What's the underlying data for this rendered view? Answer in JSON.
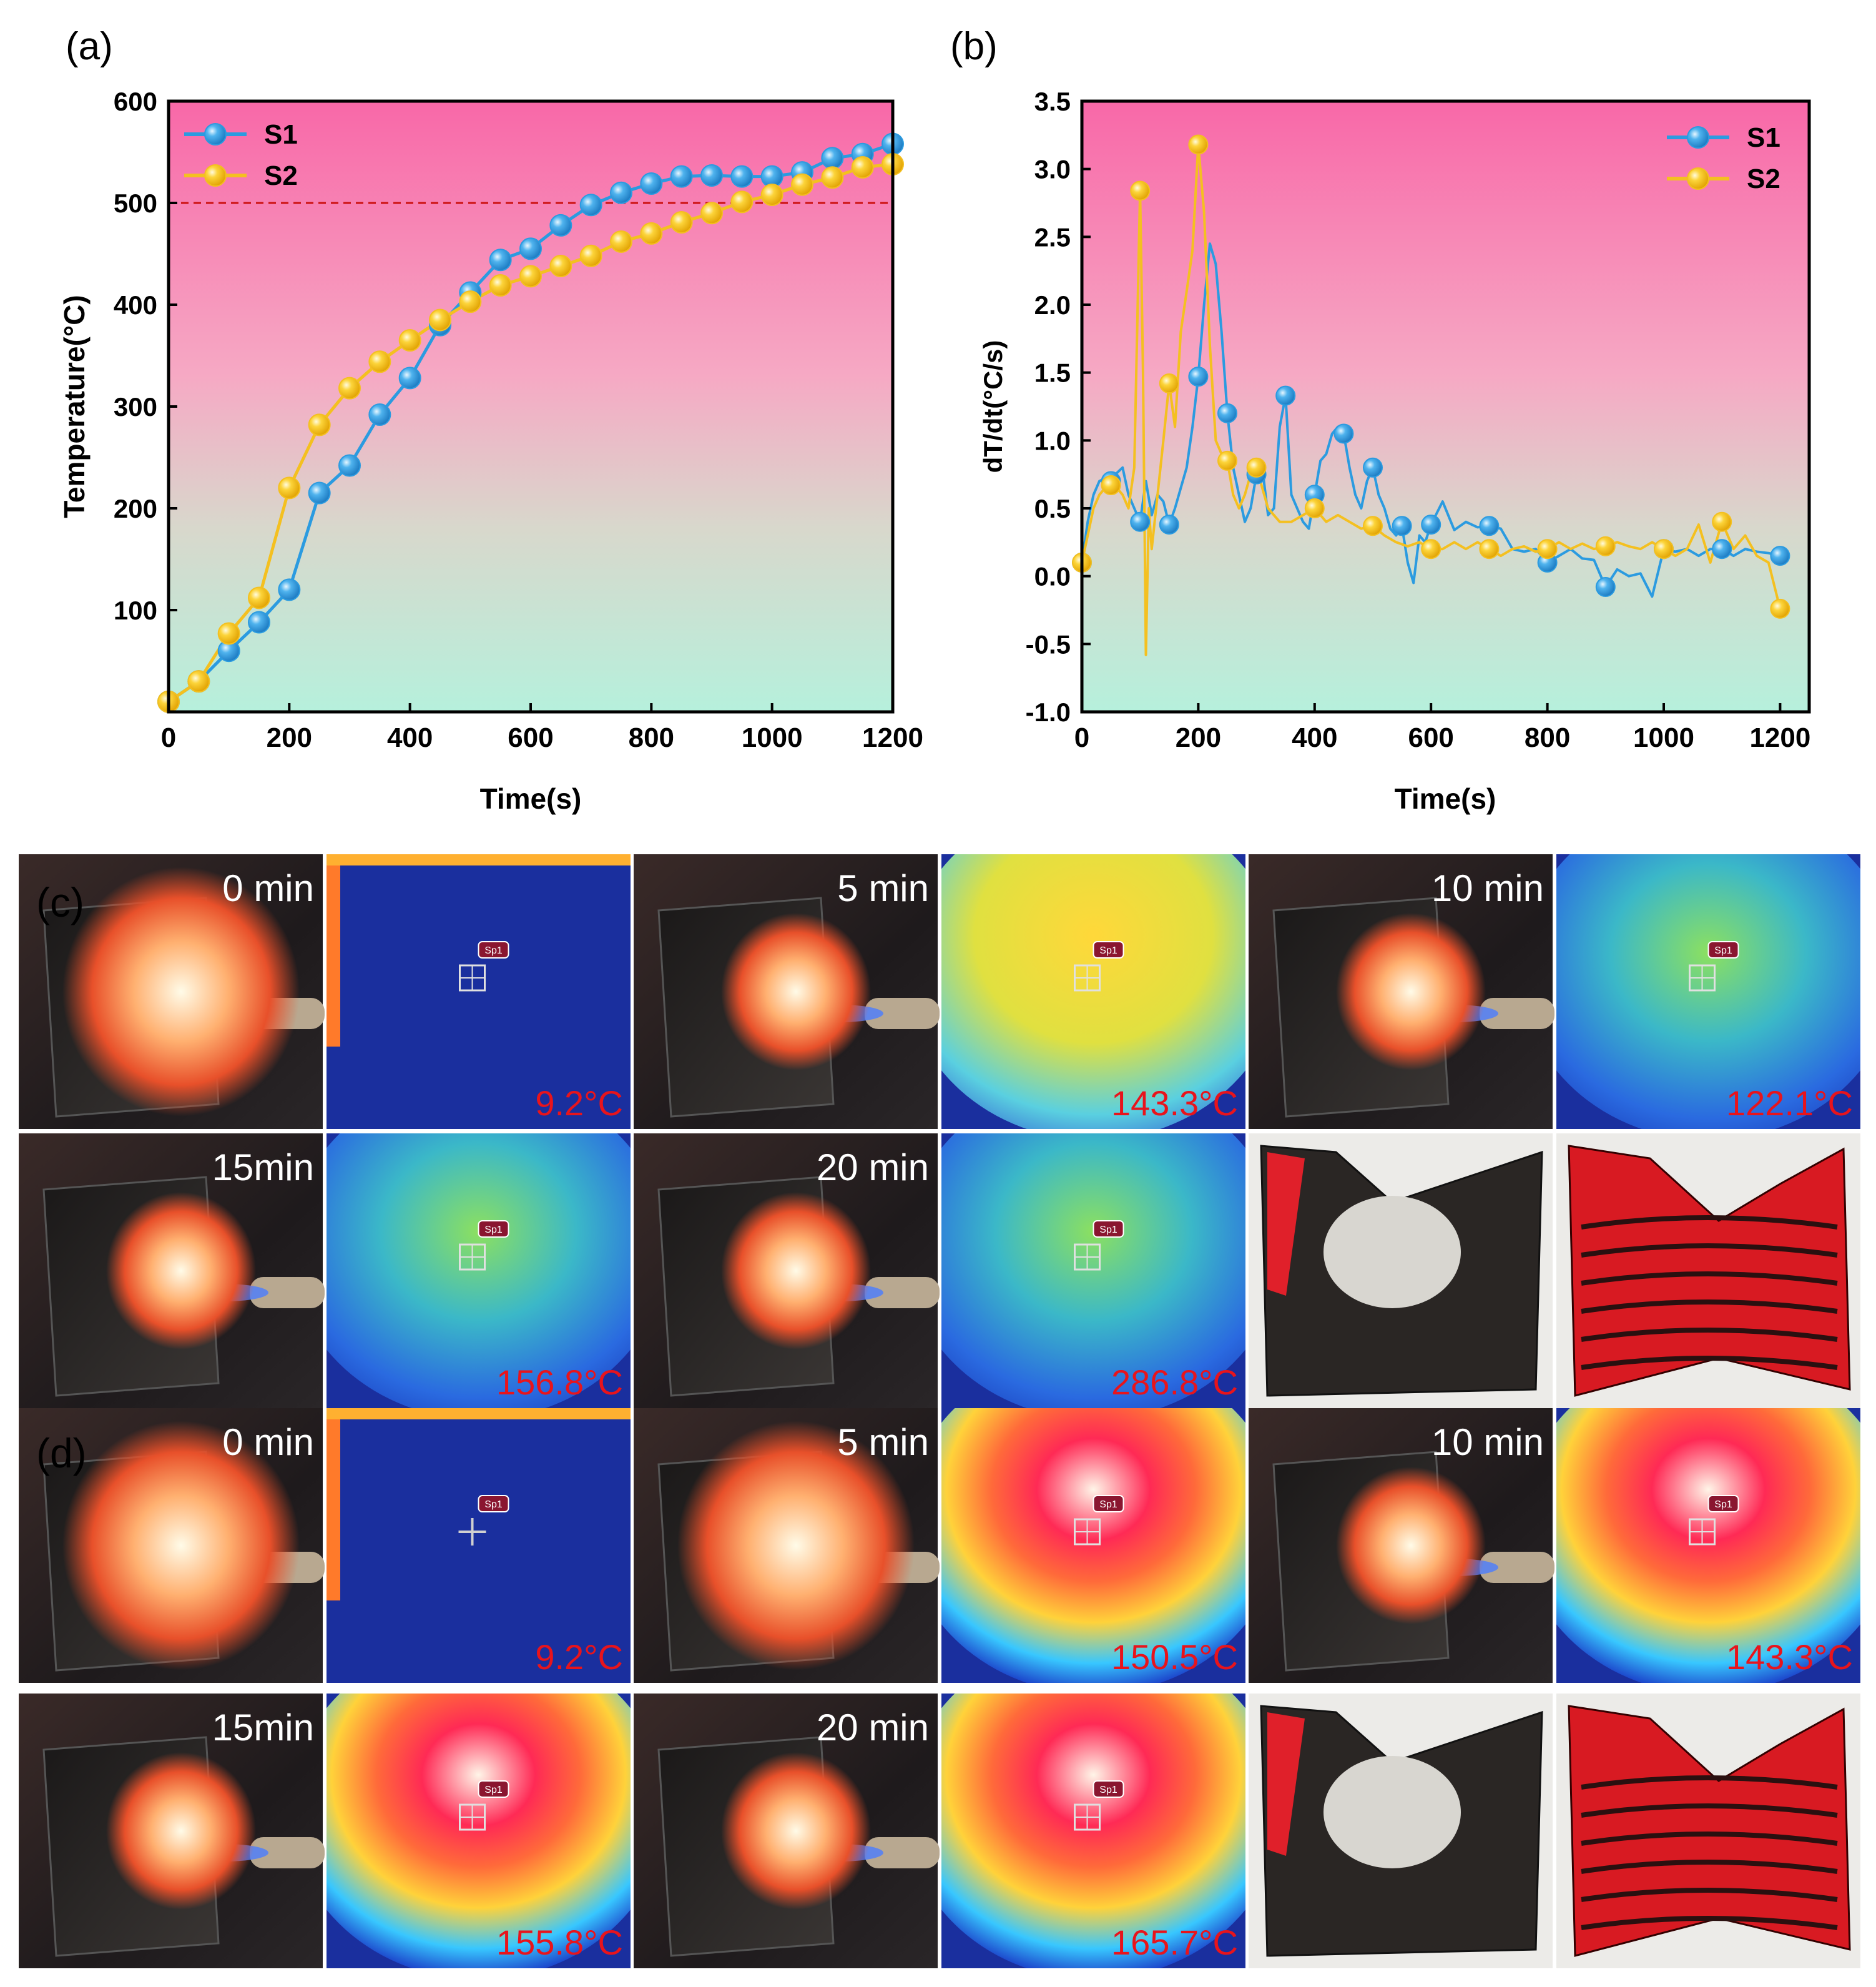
{
  "panel_labels": {
    "a": "(a)",
    "b": "(b)",
    "c": "(c)",
    "d": "(d)"
  },
  "colors": {
    "s1": "#2b9be0",
    "s2": "#f4c020",
    "s1_marker": "#4fb3ee",
    "s2_marker": "#fcd43a",
    "ref_line": "#cc1111",
    "temp_text": "#e8141c",
    "bg_top": "#f868a8",
    "bg_bottom": "#b6f0dc"
  },
  "chart_data": [
    {
      "type": "line",
      "title": "",
      "xlabel": "Time(s)",
      "ylabel": "Temperature(°C)",
      "xlim": [
        0,
        1200
      ],
      "ylim": [
        0,
        600
      ],
      "xticks": [
        0,
        200,
        400,
        600,
        800,
        1000,
        1200
      ],
      "yticks": [
        100,
        200,
        300,
        400,
        500,
        600
      ],
      "reference_line": 500,
      "legend": [
        "S1",
        "S2"
      ],
      "legend_position": "top-left",
      "series": [
        {
          "name": "S1",
          "x": [
            0,
            50,
            100,
            150,
            200,
            250,
            300,
            350,
            400,
            450,
            500,
            550,
            600,
            650,
            700,
            750,
            800,
            850,
            900,
            950,
            1000,
            1050,
            1100,
            1150,
            1200
          ],
          "y": [
            10,
            30,
            60,
            88,
            120,
            215,
            242,
            292,
            328,
            380,
            412,
            444,
            455,
            478,
            498,
            510,
            519,
            526,
            527,
            526,
            526,
            530,
            544,
            548,
            558
          ]
        },
        {
          "name": "S2",
          "x": [
            0,
            50,
            100,
            150,
            200,
            250,
            300,
            350,
            400,
            450,
            500,
            550,
            600,
            650,
            700,
            750,
            800,
            850,
            900,
            950,
            1000,
            1050,
            1100,
            1150,
            1200
          ],
          "y": [
            10,
            30,
            77,
            112,
            220,
            282,
            318,
            344,
            365,
            385,
            403,
            419,
            428,
            438,
            448,
            462,
            470,
            481,
            490,
            501,
            508,
            518,
            525,
            535,
            538
          ]
        }
      ]
    },
    {
      "type": "line",
      "title": "",
      "xlabel": "Time(s)",
      "ylabel": "dT/dt(°C/s)",
      "xlim": [
        0,
        1250
      ],
      "ylim": [
        -1.0,
        3.5
      ],
      "xticks": [
        0,
        200,
        400,
        600,
        800,
        1000,
        1200
      ],
      "yticks": [
        -1.0,
        -0.5,
        0.0,
        0.5,
        1.0,
        1.5,
        2.0,
        2.5,
        3.0,
        3.5
      ],
      "legend": [
        "S1",
        "S2"
      ],
      "legend_position": "top-right",
      "series": [
        {
          "name": "S1",
          "x": [
            0,
            10,
            20,
            30,
            40,
            50,
            60,
            70,
            80,
            90,
            100,
            110,
            120,
            130,
            140,
            150,
            160,
            170,
            180,
            190,
            200,
            210,
            220,
            230,
            240,
            250,
            260,
            270,
            280,
            290,
            300,
            310,
            320,
            330,
            340,
            350,
            360,
            370,
            380,
            390,
            400,
            410,
            420,
            430,
            440,
            450,
            460,
            470,
            480,
            490,
            500,
            510,
            520,
            530,
            540,
            550,
            560,
            570,
            580,
            590,
            600,
            620,
            640,
            660,
            680,
            700,
            720,
            740,
            760,
            780,
            800,
            820,
            840,
            860,
            880,
            900,
            920,
            940,
            960,
            980,
            1000,
            1020,
            1040,
            1060,
            1080,
            1100,
            1120,
            1140,
            1160,
            1180,
            1200
          ],
          "y": [
            0.1,
            0.4,
            0.6,
            0.7,
            0.72,
            0.7,
            0.76,
            0.8,
            0.6,
            0.5,
            0.4,
            0.7,
            0.45,
            0.6,
            0.55,
            0.38,
            0.5,
            0.65,
            0.8,
            1.1,
            1.47,
            2.0,
            2.45,
            2.3,
            1.8,
            1.2,
            0.8,
            0.6,
            0.4,
            0.5,
            0.75,
            0.8,
            0.45,
            0.5,
            1.1,
            1.33,
            0.6,
            0.5,
            0.4,
            0.35,
            0.6,
            0.85,
            0.9,
            1.05,
            1.1,
            1.05,
            0.8,
            0.6,
            0.5,
            0.7,
            0.8,
            0.6,
            0.5,
            0.35,
            0.3,
            0.37,
            0.1,
            -0.05,
            0.3,
            0.25,
            0.38,
            0.55,
            0.34,
            0.4,
            0.36,
            0.37,
            0.35,
            0.2,
            0.18,
            0.2,
            0.1,
            0.15,
            0.2,
            0.13,
            0.12,
            -0.08,
            0.05,
            0.0,
            0.02,
            -0.15,
            0.2,
            0.18,
            0.2,
            0.15,
            0.2,
            0.2,
            0.15,
            0.2,
            0.18,
            0.17,
            0.15
          ]
        },
        {
          "name": "S2",
          "x": [
            0,
            10,
            20,
            30,
            40,
            50,
            60,
            70,
            80,
            90,
            100,
            105,
            110,
            115,
            120,
            130,
            140,
            150,
            160,
            170,
            180,
            190,
            200,
            210,
            220,
            230,
            240,
            250,
            260,
            270,
            280,
            290,
            300,
            320,
            340,
            360,
            380,
            400,
            420,
            440,
            460,
            480,
            500,
            520,
            540,
            560,
            580,
            600,
            620,
            640,
            660,
            680,
            700,
            720,
            740,
            760,
            780,
            800,
            820,
            840,
            860,
            880,
            900,
            920,
            940,
            960,
            980,
            1000,
            1020,
            1040,
            1060,
            1080,
            1100,
            1120,
            1140,
            1160,
            1180,
            1200
          ],
          "y": [
            0.1,
            0.3,
            0.5,
            0.6,
            0.65,
            0.67,
            0.65,
            0.6,
            0.5,
            0.8,
            2.84,
            1.5,
            -0.58,
            0.5,
            0.2,
            0.6,
            1.0,
            1.42,
            1.1,
            1.8,
            2.1,
            2.4,
            3.18,
            2.68,
            1.7,
            1.0,
            0.9,
            0.85,
            0.6,
            0.5,
            0.6,
            0.75,
            0.8,
            0.5,
            0.4,
            0.4,
            0.45,
            0.5,
            0.4,
            0.45,
            0.4,
            0.35,
            0.37,
            0.3,
            0.25,
            0.22,
            0.25,
            0.2,
            0.2,
            0.25,
            0.2,
            0.25,
            0.2,
            0.15,
            0.2,
            0.22,
            0.18,
            0.2,
            0.25,
            0.2,
            0.24,
            0.2,
            0.22,
            0.25,
            0.22,
            0.2,
            0.25,
            0.2,
            0.15,
            0.2,
            0.38,
            0.1,
            0.4,
            0.2,
            0.3,
            0.15,
            0.1,
            -0.24
          ]
        }
      ]
    }
  ],
  "tiles": {
    "c_row1": [
      "0 min",
      "9.2°C",
      "5 min",
      "143.3°C",
      "10 min",
      "122.1°C"
    ],
    "c_row2": [
      "15min",
      "156.8°C",
      "20 min",
      "286.8°C"
    ],
    "d_row1": [
      "0 min",
      "9.2°C",
      "5 min",
      "150.5°C",
      "10 min",
      "143.3°C"
    ],
    "d_row2": [
      "15min",
      "155.8°C",
      "20 min",
      "165.7°C"
    ],
    "spot_label": "Sp1"
  }
}
